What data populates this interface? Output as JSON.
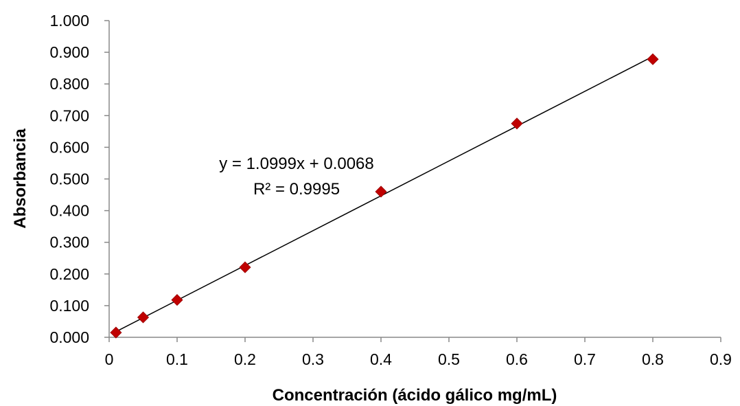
{
  "chart_data": {
    "type": "scatter",
    "title": "",
    "xlabel": "Concentración (ácido gálico mg/mL)",
    "ylabel": "Absorbancia",
    "xlim": [
      0,
      0.9
    ],
    "ylim": [
      0,
      1.0
    ],
    "x_ticks": [
      "0",
      "0.1",
      "0.2",
      "0.3",
      "0.4",
      "0.5",
      "0.6",
      "0.7",
      "0.8",
      "0.9"
    ],
    "y_ticks": [
      "0.000",
      "0.100",
      "0.200",
      "0.300",
      "0.400",
      "0.500",
      "0.600",
      "0.700",
      "0.800",
      "0.900",
      "1.000"
    ],
    "grid": false,
    "legend": "none",
    "marker_color": "#C00000",
    "line_color": "#000000",
    "series": [
      {
        "x": [
          0.01,
          0.05,
          0.1,
          0.2,
          0.4,
          0.6,
          0.8
        ],
        "y": [
          0.015,
          0.063,
          0.118,
          0.221,
          0.46,
          0.675,
          0.878
        ]
      }
    ],
    "trendline": {
      "type": "linear",
      "slope": 1.0999,
      "intercept": 0.0068,
      "x_range": [
        0.01,
        0.8
      ],
      "equation": "y = 1.0999x + 0.0068",
      "r_squared": "R² = 0.9995"
    }
  }
}
